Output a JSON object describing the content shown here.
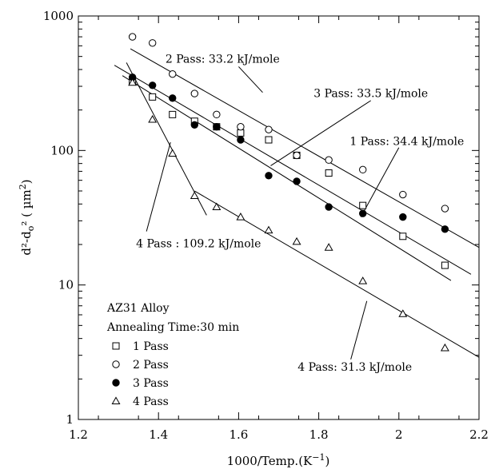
{
  "chart_data": {
    "type": "scatter",
    "xlabel": "1000/Temp.(K",
    "xlabel_sup": "−1",
    "xlabel_tail": ")",
    "ylabel": "d²-d",
    "ylabel_sub": "o",
    "ylabel_mid": "² ( µm",
    "ylabel_sup": "2",
    "ylabel_tail": ")",
    "xlim": [
      1.2,
      2.2
    ],
    "ylim": [
      1,
      1000
    ],
    "yscale": "log",
    "grid": false,
    "x_ticks": [
      "1.2",
      "1.4",
      "1.6",
      "1.8",
      "2",
      "2.2"
    ],
    "y_ticks": [
      "1",
      "10",
      "100",
      "1000"
    ],
    "legend": {
      "position": "bottom-left",
      "title1": "AZ31 Alloy",
      "title2": "Annealing Time:30 min",
      "entries": [
        "1 Pass",
        "2 Pass",
        "3 Pass",
        "4 Pass"
      ]
    },
    "series": [
      {
        "name": "1 Pass",
        "marker": "open-square",
        "points": [
          [
            1.335,
            325
          ],
          [
            1.385,
            250
          ],
          [
            1.435,
            185
          ],
          [
            1.49,
            165
          ],
          [
            1.545,
            150
          ],
          [
            1.605,
            135
          ],
          [
            1.675,
            120
          ],
          [
            1.745,
            92
          ],
          [
            1.825,
            68
          ],
          [
            1.91,
            39
          ],
          [
            2.01,
            23
          ],
          [
            2.115,
            14
          ]
        ]
      },
      {
        "name": "2 Pass",
        "marker": "open-circle",
        "points": [
          [
            1.335,
            700
          ],
          [
            1.385,
            630
          ],
          [
            1.435,
            370
          ],
          [
            1.49,
            265
          ],
          [
            1.545,
            185
          ],
          [
            1.605,
            150
          ],
          [
            1.675,
            143
          ],
          [
            1.745,
            92
          ],
          [
            1.825,
            85
          ],
          [
            1.91,
            72
          ],
          [
            2.01,
            47
          ],
          [
            2.115,
            37
          ]
        ]
      },
      {
        "name": "3 Pass",
        "marker": "filled-circle",
        "points": [
          [
            1.335,
            350
          ],
          [
            1.385,
            305
          ],
          [
            1.435,
            245
          ],
          [
            1.49,
            155
          ],
          [
            1.545,
            150
          ],
          [
            1.605,
            120
          ],
          [
            1.675,
            65
          ],
          [
            1.745,
            59
          ],
          [
            1.825,
            38
          ],
          [
            1.91,
            34
          ],
          [
            2.01,
            32
          ],
          [
            2.115,
            26
          ]
        ]
      },
      {
        "name": "4 Pass",
        "marker": "open-triangle",
        "points": [
          [
            1.335,
            320
          ],
          [
            1.385,
            170
          ],
          [
            1.435,
            95
          ],
          [
            1.49,
            46
          ],
          [
            1.545,
            38
          ],
          [
            1.605,
            32
          ],
          [
            1.675,
            25.5
          ],
          [
            1.745,
            21
          ],
          [
            1.825,
            19
          ],
          [
            1.91,
            10.7
          ],
          [
            2.01,
            6.1
          ],
          [
            2.115,
            3.4
          ]
        ]
      }
    ],
    "fit_lines": [
      {
        "name": "2 Pass fit",
        "x1": 1.33,
        "y1": 570,
        "x2": 2.2,
        "y2": 19
      },
      {
        "name": "3 Pass fit",
        "x1": 1.29,
        "y1": 430,
        "x2": 2.18,
        "y2": 12
      },
      {
        "name": "1 Pass fit",
        "x1": 1.31,
        "y1": 360,
        "x2": 2.13,
        "y2": 10.8
      },
      {
        "name": "4 Pass fit (high T)",
        "x1": 1.32,
        "y1": 450,
        "x2": 1.52,
        "y2": 33
      },
      {
        "name": "4 Pass fit (low T)",
        "x1": 1.49,
        "y1": 50,
        "x2": 2.2,
        "y2": 2.9
      }
    ],
    "annotations": [
      {
        "text": "2 Pass: 33.2 kJ/mole",
        "tx": 1.56,
        "ty": 450,
        "px1": 1.6,
        "py1": 420,
        "px2": 1.66,
        "py2": 270
      },
      {
        "text": "3 Pass: 33.5 kJ/mole",
        "tx": 1.93,
        "ty": 250,
        "px1": 1.93,
        "py1": 235,
        "px2": 1.68,
        "py2": 77
      },
      {
        "text": "1 Pass: 34.4 kJ/mole",
        "tx": 2.02,
        "ty": 110,
        "px1": 2.0,
        "py1": 105,
        "px2": 1.905,
        "py2": 32
      },
      {
        "text": "4 Pass : 109.2 kJ/mole",
        "tx": 1.5,
        "ty": 19,
        "px1": 1.37,
        "py1": 25,
        "px2": 1.43,
        "py2": 115
      },
      {
        "text": "4 Pass: 31.3 kJ/mole",
        "tx": 1.89,
        "ty": 2.3,
        "px1": 1.88,
        "py1": 2.8,
        "px2": 1.92,
        "py2": 7.6
      }
    ]
  }
}
